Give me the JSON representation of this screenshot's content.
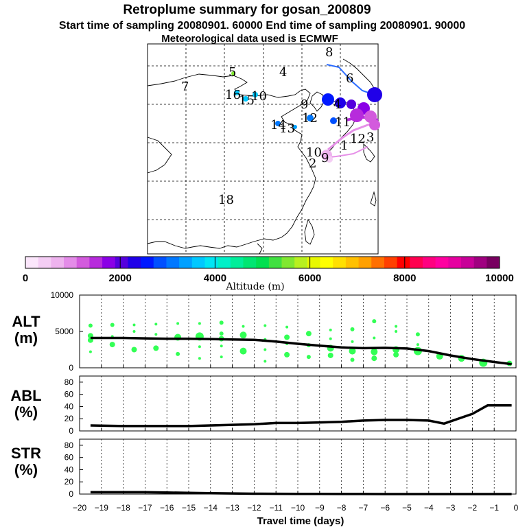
{
  "header": {
    "title": "Retroplume summary for gosan_200809",
    "line2": "Start time of sampling 20080901. 60000     End time of sampling 20080901. 90000",
    "line3": "Meteorological data used is ECMWF"
  },
  "map": {
    "labels": [
      "8",
      "5",
      "4",
      "7",
      "6",
      "10",
      "16",
      "15",
      "9",
      "4",
      "12",
      "11",
      "14",
      "13",
      "10",
      "2",
      "9",
      "1",
      "12",
      "3",
      "18"
    ]
  },
  "colorbar": {
    "colors": [
      "#fbe6fb",
      "#f4cdf4",
      "#eeb3ee",
      "#e48ce8",
      "#d35bdd",
      "#b72bdc",
      "#8b00e6",
      "#5500dd",
      "#2000e8",
      "#0018ff",
      "#0050ff",
      "#0078ff",
      "#00a0ff",
      "#00c8ff",
      "#00e6f4",
      "#00f0c8",
      "#00ee9a",
      "#00e672",
      "#00e050",
      "#40e040",
      "#80e830",
      "#b8f020",
      "#e8f800",
      "#ffff00",
      "#ffe000",
      "#ffc000",
      "#ffa000",
      "#ff7000",
      "#ff4000",
      "#ff0000",
      "#ff0050",
      "#ff0080",
      "#ff00a0",
      "#e600a0",
      "#c80098",
      "#a00080",
      "#780060"
    ],
    "tick_labels": [
      "0",
      "2000",
      "4000",
      "6000",
      "8000",
      "10000"
    ],
    "tick_values": [
      0,
      2000,
      4000,
      6000,
      8000,
      10000
    ],
    "range": [
      0,
      10000
    ],
    "label": "Altitude (m)"
  },
  "panels": {
    "alt": {
      "label_top": "ALT",
      "label_bot": "(m)"
    },
    "abl": {
      "label_top": "ABL",
      "label_bot": "(%)"
    },
    "str": {
      "label_top": "STR",
      "label_bot": "(%)"
    }
  },
  "xaxis": {
    "label": "Travel time (days)"
  },
  "chart_data": {
    "type": "line",
    "title": "Retroplume summary for gosan_200809",
    "xlabel": "Travel time (days)",
    "x_range": [
      -20,
      0
    ],
    "x_ticks": [
      -20,
      -19,
      -18,
      -17,
      -16,
      -15,
      -14,
      -13,
      -12,
      -11,
      -10,
      -9,
      -8,
      -7,
      -6,
      -5,
      -4,
      -3,
      -2,
      -1,
      0
    ],
    "panels": [
      {
        "name": "ALT",
        "ylabel": "(m)",
        "ylim": [
          0,
          10000
        ],
        "y_ticks": [
          0,
          5000,
          10000
        ],
        "line": {
          "x": [
            -19.5,
            -19,
            -18,
            -17,
            -16,
            -15,
            -14,
            -13,
            -12,
            -11,
            -10,
            -9,
            -8,
            -7,
            -6,
            -5,
            -4,
            -3,
            -2,
            -1,
            -0.2
          ],
          "y": [
            4100,
            4100,
            4100,
            4050,
            4000,
            4000,
            3950,
            3900,
            3850,
            3600,
            3300,
            3050,
            2800,
            2700,
            2750,
            2650,
            2300,
            1700,
            1200,
            800,
            500
          ]
        },
        "scatter": [
          {
            "x": -19.5,
            "y": 5800,
            "s": 3
          },
          {
            "x": -19.5,
            "y": 4400,
            "s": 4
          },
          {
            "x": -19.5,
            "y": 3800,
            "s": 4
          },
          {
            "x": -19.5,
            "y": 2200,
            "s": 2
          },
          {
            "x": -18.5,
            "y": 5900,
            "s": 3
          },
          {
            "x": -18.5,
            "y": 3200,
            "s": 4
          },
          {
            "x": -18.5,
            "y": 4300,
            "s": 2
          },
          {
            "x": -17.5,
            "y": 5900,
            "s": 2
          },
          {
            "x": -17.5,
            "y": 5000,
            "s": 2
          },
          {
            "x": -17.5,
            "y": 2500,
            "s": 4
          },
          {
            "x": -16.5,
            "y": 6000,
            "s": 2
          },
          {
            "x": -16.5,
            "y": 4600,
            "s": 2
          },
          {
            "x": -16.5,
            "y": 2700,
            "s": 4
          },
          {
            "x": -15.5,
            "y": 6100,
            "s": 2
          },
          {
            "x": -15.5,
            "y": 4200,
            "s": 5
          },
          {
            "x": -15.5,
            "y": 1900,
            "s": 3
          },
          {
            "x": -14.5,
            "y": 6100,
            "s": 2
          },
          {
            "x": -14.5,
            "y": 4300,
            "s": 6
          },
          {
            "x": -14.5,
            "y": 2900,
            "s": 2
          },
          {
            "x": -14.5,
            "y": 1300,
            "s": 2
          },
          {
            "x": -13.5,
            "y": 6200,
            "s": 3
          },
          {
            "x": -13.5,
            "y": 4700,
            "s": 3
          },
          {
            "x": -13.5,
            "y": 4000,
            "s": 4
          },
          {
            "x": -13.5,
            "y": 3000,
            "s": 2
          },
          {
            "x": -13.5,
            "y": 1500,
            "s": 2
          },
          {
            "x": -12.5,
            "y": 5700,
            "s": 2
          },
          {
            "x": -12.5,
            "y": 4500,
            "s": 5
          },
          {
            "x": -12.5,
            "y": 2300,
            "s": 5
          },
          {
            "x": -11.5,
            "y": 5800,
            "s": 2
          },
          {
            "x": -11.5,
            "y": 3900,
            "s": 2
          },
          {
            "x": -11.5,
            "y": 2500,
            "s": 2
          },
          {
            "x": -11.5,
            "y": 900,
            "s": 2
          },
          {
            "x": -10.5,
            "y": 5600,
            "s": 2
          },
          {
            "x": -10.5,
            "y": 4200,
            "s": 4
          },
          {
            "x": -10.5,
            "y": 3300,
            "s": 2
          },
          {
            "x": -10.5,
            "y": 1800,
            "s": 4
          },
          {
            "x": -9.5,
            "y": 4700,
            "s": 4
          },
          {
            "x": -9.5,
            "y": 3100,
            "s": 3
          },
          {
            "x": -9.5,
            "y": 1500,
            "s": 3
          },
          {
            "x": -8.5,
            "y": 5200,
            "s": 2
          },
          {
            "x": -8.5,
            "y": 4000,
            "s": 2
          },
          {
            "x": -8.5,
            "y": 2700,
            "s": 5
          },
          {
            "x": -8.5,
            "y": 1700,
            "s": 4
          },
          {
            "x": -7.5,
            "y": 5300,
            "s": 3
          },
          {
            "x": -7.5,
            "y": 3600,
            "s": 2
          },
          {
            "x": -7.5,
            "y": 2300,
            "s": 5
          },
          {
            "x": -7.5,
            "y": 1100,
            "s": 3
          },
          {
            "x": -6.5,
            "y": 6400,
            "s": 3
          },
          {
            "x": -6.5,
            "y": 4100,
            "s": 2
          },
          {
            "x": -6.5,
            "y": 2200,
            "s": 5
          },
          {
            "x": -6.5,
            "y": 1300,
            "s": 4
          },
          {
            "x": -5.5,
            "y": 5700,
            "s": 2
          },
          {
            "x": -5.5,
            "y": 5000,
            "s": 2
          },
          {
            "x": -5.5,
            "y": 2500,
            "s": 5
          },
          {
            "x": -5.5,
            "y": 1800,
            "s": 4
          },
          {
            "x": -4.5,
            "y": 4600,
            "s": 3
          },
          {
            "x": -4.5,
            "y": 3200,
            "s": 2
          },
          {
            "x": -4.5,
            "y": 2300,
            "s": 6
          },
          {
            "x": -3.5,
            "y": 1600,
            "s": 5
          },
          {
            "x": -2.5,
            "y": 1300,
            "s": 5
          },
          {
            "x": -1.5,
            "y": 700,
            "s": 6
          },
          {
            "x": -0.3,
            "y": 600,
            "s": 4
          }
        ]
      },
      {
        "name": "ABL",
        "ylabel": "(%)",
        "ylim": [
          0,
          90
        ],
        "y_ticks": [
          0,
          20,
          40,
          60,
          80
        ],
        "line": {
          "x": [
            -19.5,
            -18,
            -17,
            -16,
            -15,
            -14,
            -13,
            -12,
            -11,
            -10,
            -9,
            -8,
            -7,
            -6,
            -5,
            -4,
            -3.3,
            -2,
            -1.3,
            -0.2
          ],
          "y": [
            9,
            8,
            8,
            8,
            8,
            9,
            10,
            11,
            13,
            13,
            14,
            15,
            17,
            18,
            18,
            17,
            12,
            28,
            42,
            42
          ]
        }
      },
      {
        "name": "STR",
        "ylabel": "(%)",
        "ylim": [
          0,
          90
        ],
        "y_ticks": [
          0,
          20,
          40,
          60,
          80
        ],
        "line": {
          "x": [
            -19.5,
            -18,
            -17,
            -16,
            -15,
            -14,
            -13,
            -12,
            -11,
            -10,
            -9,
            -8,
            -7,
            -6,
            -5,
            -4,
            -3,
            -2,
            -1,
            -0.2
          ],
          "y": [
            3,
            3,
            3,
            2.5,
            2,
            1.5,
            1,
            0.6,
            0.4,
            0.3,
            0.2,
            0.1,
            0.1,
            0,
            0,
            0,
            0,
            0,
            0,
            0
          ]
        }
      }
    ],
    "colorbar": {
      "label": "Altitude (m)",
      "range": [
        0,
        10000
      ],
      "ticks": [
        0,
        2000,
        4000,
        6000,
        8000,
        10000
      ]
    }
  }
}
